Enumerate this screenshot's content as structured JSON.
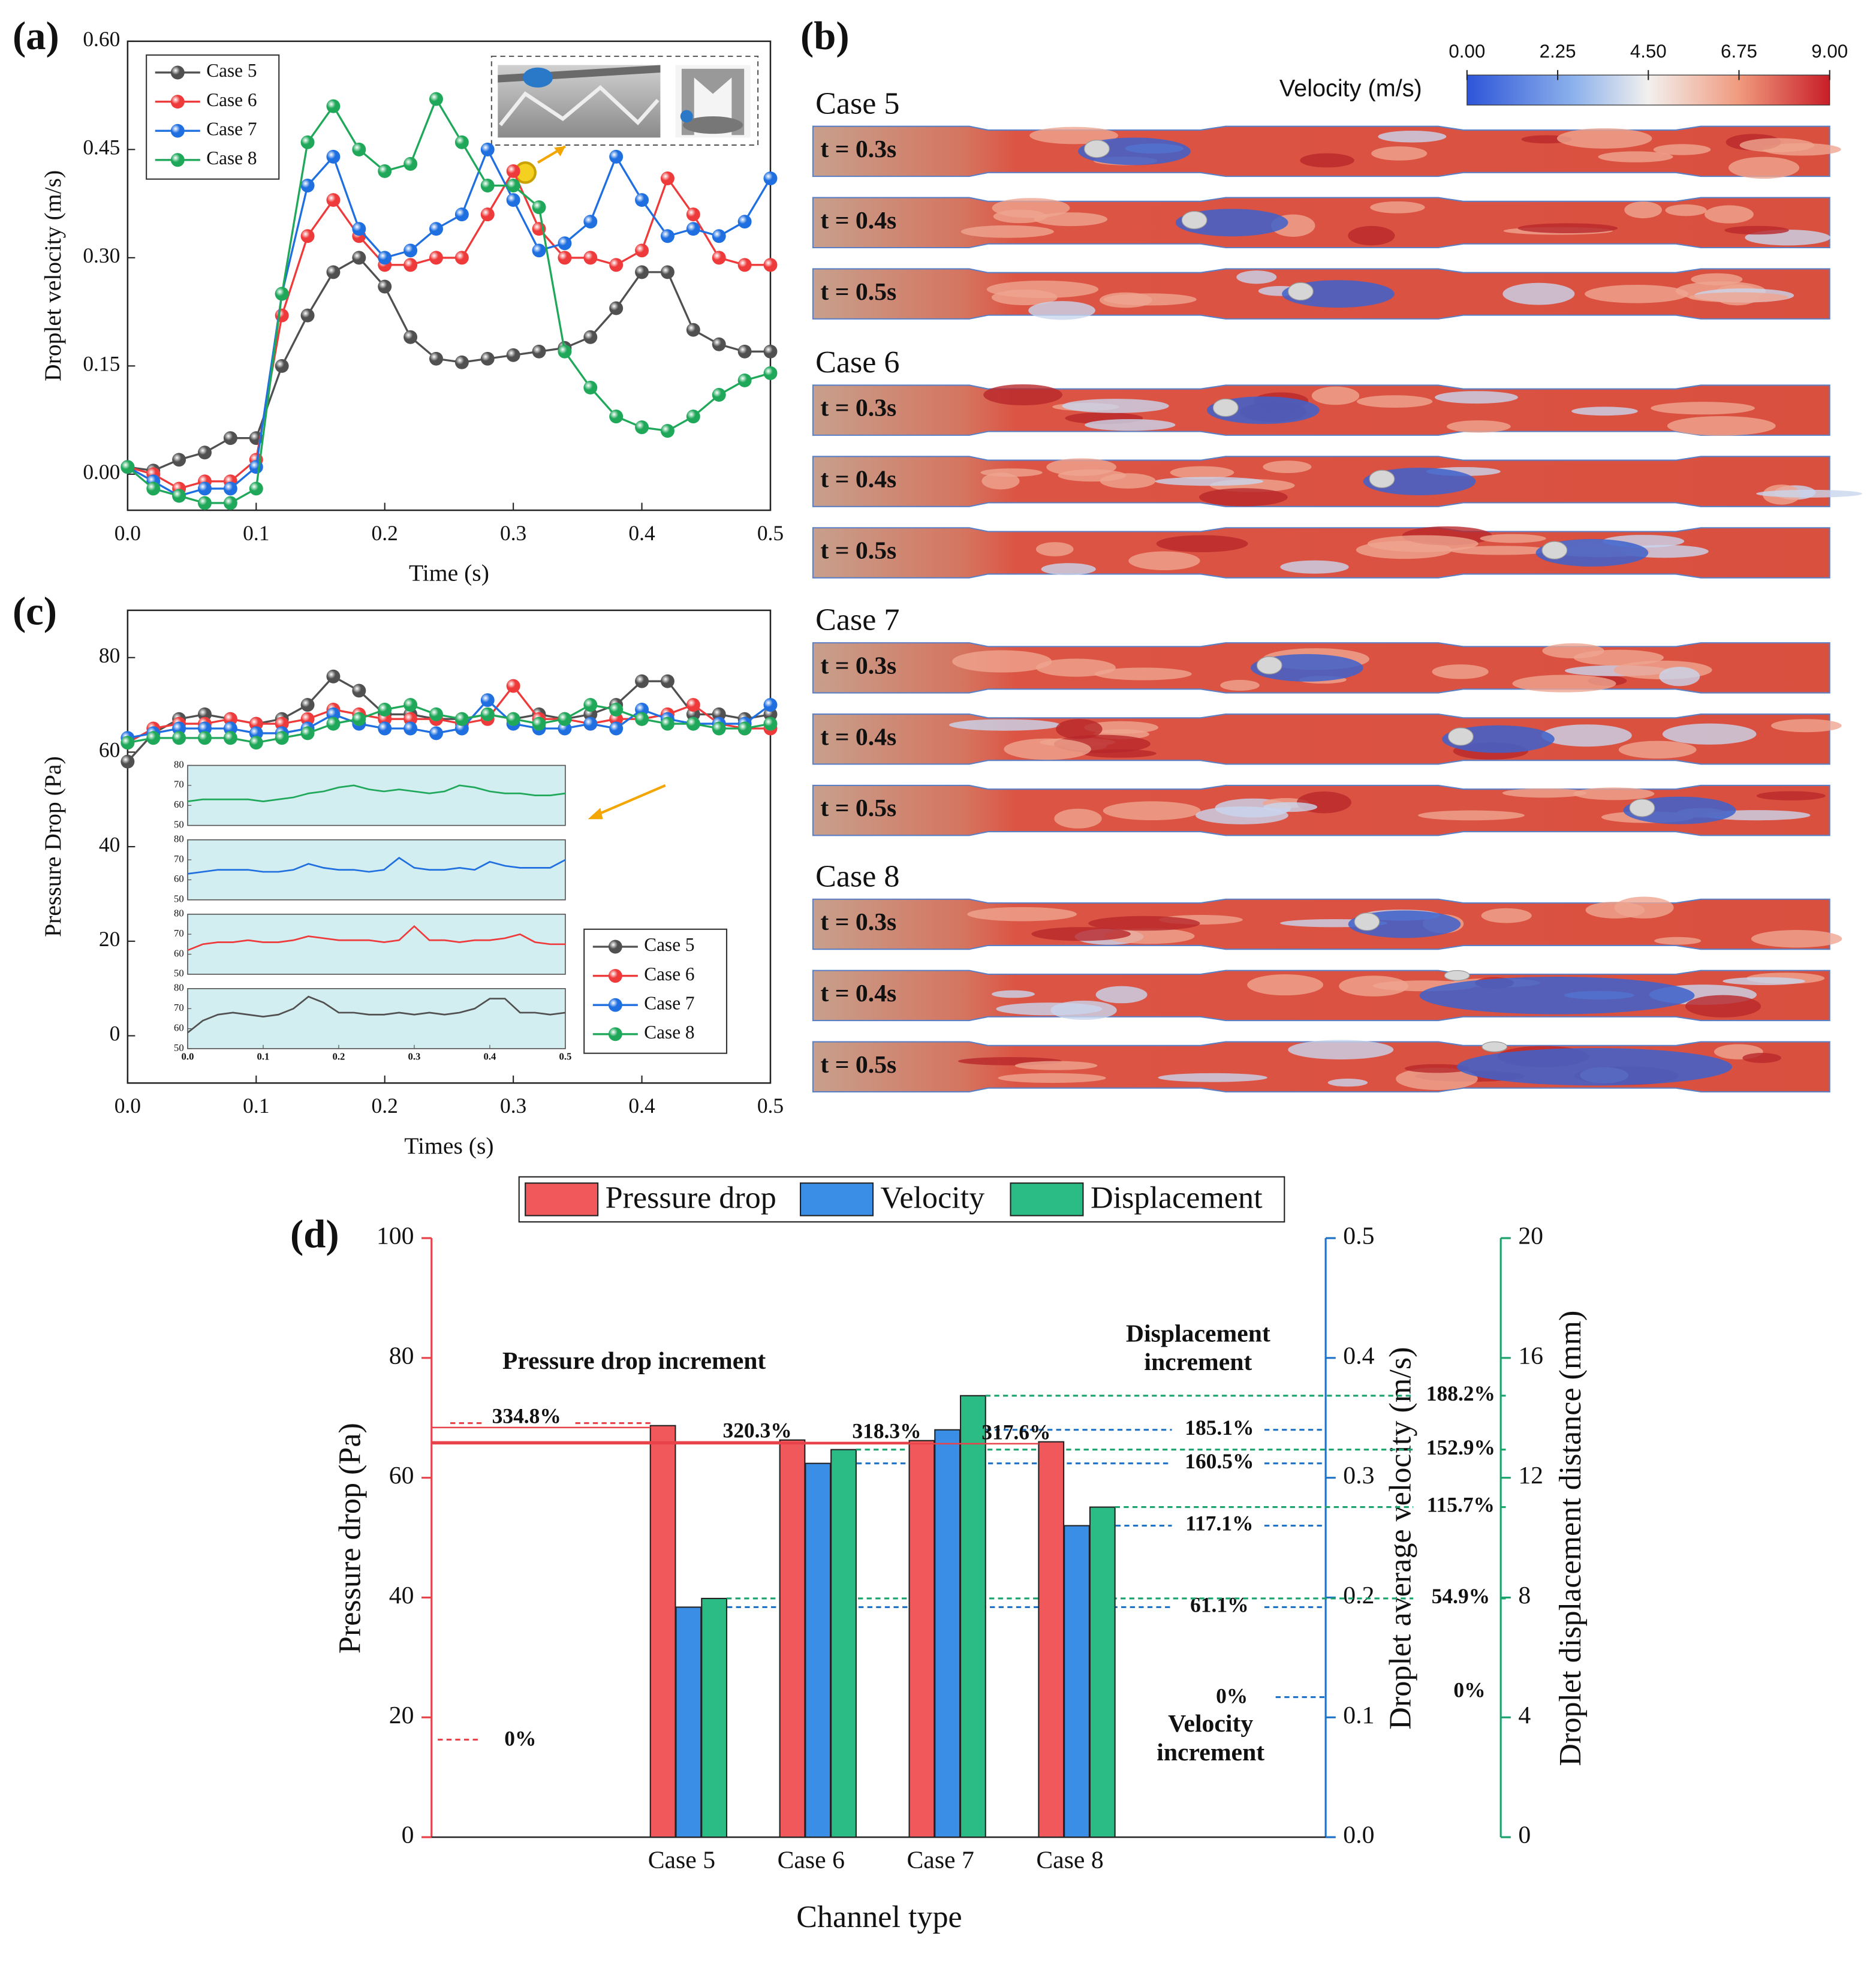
{
  "panel_labels": [
    "(a)",
    "(b)",
    "(c)",
    "(d)"
  ],
  "chart_data": [
    {
      "type": "line",
      "xlabel": "Time (s)",
      "ylabel": "Droplet velocity (m/s)",
      "x": [
        0,
        0.02,
        0.04,
        0.06,
        0.08,
        0.1,
        0.12,
        0.14,
        0.16,
        0.18,
        0.2,
        0.22,
        0.24,
        0.26,
        0.28,
        0.3,
        0.32,
        0.34,
        0.36,
        0.38,
        0.4,
        0.42,
        0.44,
        0.46,
        0.48,
        0.5
      ],
      "xlim": [
        0,
        0.5
      ],
      "ylim": [
        -0.05,
        0.6
      ],
      "xticks": [
        {
          "value": 0,
          "label": "0.0"
        },
        0.1,
        0.2,
        0.3,
        0.4,
        0.5
      ],
      "yticks": [
        {
          "value": 0,
          "label": "0.00"
        },
        0.15,
        {
          "value": 0.3,
          "label": "0.30"
        },
        0.45,
        {
          "value": 0.6,
          "label": "0.60"
        }
      ],
      "legend": "upper left",
      "series": [
        {
          "name": "Case 5",
          "color": "#505050",
          "values": [
            0.01,
            0.005,
            0.02,
            0.03,
            0.05,
            0.05,
            0.15,
            0.22,
            0.28,
            0.3,
            0.26,
            0.19,
            0.16,
            0.155,
            0.16,
            0.165,
            0.17,
            0.175,
            0.19,
            0.23,
            0.28,
            0.28,
            0.2,
            0.18,
            0.17,
            0.17
          ]
        },
        {
          "name": "Case 6",
          "color": "#ee3a3a",
          "values": [
            0.01,
            0,
            -0.02,
            -0.01,
            -0.01,
            0.02,
            0.22,
            0.33,
            0.38,
            0.33,
            0.29,
            0.29,
            0.3,
            0.3,
            0.36,
            0.42,
            0.34,
            0.3,
            0.3,
            0.29,
            0.31,
            0.41,
            0.36,
            0.3,
            0.29,
            0.29
          ]
        },
        {
          "name": "Case 7",
          "color": "#1f6fe0",
          "values": [
            0.01,
            -0.01,
            -0.03,
            -0.02,
            -0.02,
            0.01,
            0.25,
            0.4,
            0.44,
            0.34,
            0.3,
            0.31,
            0.34,
            0.36,
            0.45,
            0.38,
            0.31,
            0.32,
            0.35,
            0.44,
            0.38,
            0.33,
            0.34,
            0.33,
            0.35,
            0.41
          ]
        },
        {
          "name": "Case 8",
          "color": "#1fa85a",
          "values": [
            0.01,
            -0.02,
            -0.03,
            -0.04,
            -0.04,
            -0.02,
            0.25,
            0.46,
            0.51,
            0.45,
            0.42,
            0.43,
            0.52,
            0.46,
            0.4,
            0.4,
            0.37,
            0.17,
            0.12,
            0.08,
            0.065,
            0.06,
            0.08,
            0.11,
            0.13,
            0.14
          ]
        }
      ]
    },
    {
      "type": "line",
      "xlabel": "Times (s)",
      "ylabel": "Pressure Drop (Pa)",
      "x": [
        0,
        0.02,
        0.04,
        0.06,
        0.08,
        0.1,
        0.12,
        0.14,
        0.16,
        0.18,
        0.2,
        0.22,
        0.24,
        0.26,
        0.28,
        0.3,
        0.32,
        0.34,
        0.36,
        0.38,
        0.4,
        0.42,
        0.44,
        0.46,
        0.48,
        0.5
      ],
      "xlim": [
        0,
        0.5
      ],
      "ylim": [
        -10,
        90
      ],
      "xticks": [
        {
          "value": 0,
          "label": "0.0"
        },
        0.1,
        0.2,
        0.3,
        0.4,
        0.5
      ],
      "yticks": [
        0,
        20,
        40,
        60,
        80
      ],
      "inset_ylim": [
        50,
        80
      ],
      "inset_yticks": [
        50,
        60,
        70,
        80
      ],
      "legend": "lower right",
      "series": [
        {
          "name": "Case 5",
          "color": "#505050",
          "values": [
            58,
            64,
            67,
            68,
            67,
            66,
            67,
            70,
            76,
            73,
            68,
            68,
            67,
            67,
            68,
            67,
            68,
            67,
            68,
            70,
            75,
            75,
            68,
            68,
            67,
            68
          ]
        },
        {
          "name": "Case 6",
          "color": "#ee3a3a",
          "values": [
            62,
            65,
            66,
            66,
            67,
            66,
            66,
            67,
            69,
            68,
            67,
            67,
            67,
            66,
            67,
            74,
            67,
            67,
            66,
            67,
            67,
            68,
            70,
            66,
            65,
            65
          ]
        },
        {
          "name": "Case 7",
          "color": "#1f6fe0",
          "values": [
            63,
            64,
            65,
            65,
            65,
            64,
            64,
            65,
            68,
            66,
            65,
            65,
            64,
            65,
            71,
            66,
            65,
            65,
            66,
            65,
            69,
            67,
            66,
            66,
            66,
            70
          ]
        },
        {
          "name": "Case 8",
          "color": "#1fa85a",
          "values": [
            62,
            63,
            63,
            63,
            63,
            62,
            63,
            64,
            66,
            67,
            69,
            70,
            68,
            67,
            68,
            67,
            66,
            67,
            70,
            69,
            67,
            66,
            66,
            65,
            65,
            66
          ]
        }
      ]
    },
    {
      "type": "bar",
      "xlabel": "Channel type",
      "ylabel": "Pressure drop (Pa)",
      "y2label": "Droplet average velocity (m/s)",
      "y3label": "Droplet displacement distance (mm)",
      "categories": [
        "Case 5",
        "Case 6",
        "Case 7",
        "Case 8"
      ],
      "ylim": [
        0,
        100
      ],
      "yticks": [
        0,
        20,
        40,
        60,
        80,
        100
      ],
      "y2lim": [
        0,
        0.5
      ],
      "y2ticks": [
        {
          "value": 0,
          "label": "0.0"
        },
        0.1,
        0.2,
        0.3,
        0.4,
        0.5
      ],
      "y3lim": [
        0,
        20
      ],
      "y3ticks": [
        0,
        4,
        8,
        12,
        16,
        20
      ],
      "legend": "top",
      "series": [
        {
          "name": "Pressure drop",
          "color": "#f0585c",
          "axis": "y",
          "values": [
            68.7,
            66.3,
            66.2,
            66.0
          ],
          "increments": [
            "334.8%",
            "320.3%",
            "318.3%",
            "317.6%"
          ],
          "zero_label": "0%",
          "increment_label": [
            "Pressure drop increment"
          ]
        },
        {
          "name": "Velocity",
          "color": "#3a8ee6",
          "axis": "y2",
          "values": [
            0.192,
            0.312,
            0.34,
            0.26
          ],
          "increments": [
            "61.1%",
            "160.5%",
            "185.1%",
            "117.1%"
          ],
          "zero_label": "0%",
          "increment_label": [
            "Velocity",
            "increment"
          ]
        },
        {
          "name": "Displacement",
          "color": "#2bbb84",
          "axis": "y3",
          "values": [
            7.97,
            12.94,
            14.74,
            11.02
          ],
          "increments": [
            "54.9%",
            "152.9%",
            "188.2%",
            "115.7%"
          ],
          "zero_label": "0%",
          "increment_label": [
            "Displacement",
            "increment"
          ]
        }
      ]
    }
  ],
  "panel_b": {
    "colorbar_label": "Velocity (m/s)",
    "colorbar_ticks": [
      "0.00",
      "2.25",
      "4.50",
      "6.75",
      "9.00"
    ],
    "cases": [
      {
        "name": "Case 5",
        "times": [
          "t = 0.3s",
          "t = 0.4s",
          "t = 0.5s"
        ]
      },
      {
        "name": "Case 6",
        "times": [
          "t = 0.3s",
          "t = 0.4s",
          "t = 0.5s"
        ]
      },
      {
        "name": "Case 7",
        "times": [
          "t = 0.3s",
          "t = 0.4s",
          "t = 0.5s"
        ]
      },
      {
        "name": "Case 8",
        "times": [
          "t = 0.3s",
          "t = 0.4s",
          "t = 0.5s"
        ]
      }
    ]
  }
}
